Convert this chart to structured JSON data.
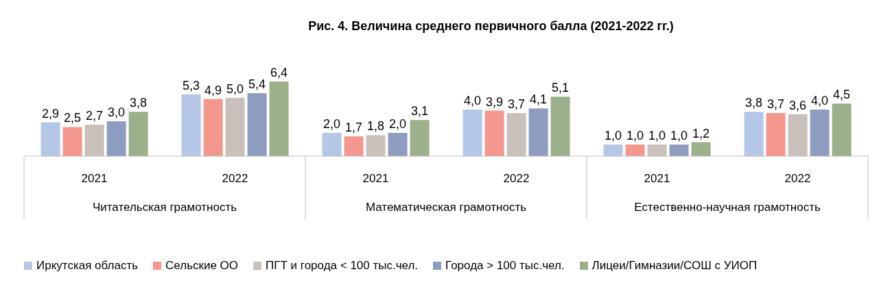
{
  "chart_data": {
    "type": "bar",
    "title": "Рис. 4. Величина среднего первичного балла (2021-2022 гг.)",
    "categories": [
      "2021",
      "2022",
      "2021",
      "2022",
      "2021",
      "2022"
    ],
    "annotations": [
      "Читательская грамотность",
      "Математическая грамотность",
      "Естественно-научная грамотность"
    ],
    "series": [
      {
        "name": "Иркутская область",
        "color": "#b4c7e7",
        "values": [
          2.9,
          5.3,
          2.0,
          4.0,
          1.0,
          3.8
        ],
        "value_labels": [
          "2,9",
          "5,3",
          "2,0",
          "4,0",
          "1,0",
          "3,8"
        ]
      },
      {
        "name": "Сельские ОО",
        "color": "#f4978e",
        "values": [
          2.5,
          4.9,
          1.7,
          3.9,
          1.0,
          3.7
        ],
        "value_labels": [
          "2,5",
          "4,9",
          "1,7",
          "3,9",
          "1,0",
          "3,7"
        ]
      },
      {
        "name": "ПГТ и города < 100 тыс.чел.",
        "color": "#c9c0bb",
        "values": [
          2.7,
          5.0,
          1.8,
          3.7,
          1.0,
          3.6
        ],
        "value_labels": [
          "2,7",
          "5,0",
          "1,8",
          "3,7",
          "1,0",
          "3,6"
        ]
      },
      {
        "name": "Города > 100 тыс.чел.",
        "color": "#8e9dbf",
        "values": [
          3.0,
          5.4,
          2.0,
          4.1,
          1.0,
          4.0
        ],
        "value_labels": [
          "3,0",
          "5,4",
          "2,0",
          "4,1",
          "1,0",
          "4,0"
        ]
      },
      {
        "name": "Лицеи/Гимназии/СОШ с УИОП",
        "color": "#9bb08b",
        "values": [
          3.8,
          6.4,
          3.1,
          5.1,
          1.2,
          4.5
        ],
        "value_labels": [
          "3,8",
          "6,4",
          "3,1",
          "5,1",
          "1,2",
          "4,5"
        ]
      }
    ],
    "legend": "bottom",
    "grid": false
  }
}
